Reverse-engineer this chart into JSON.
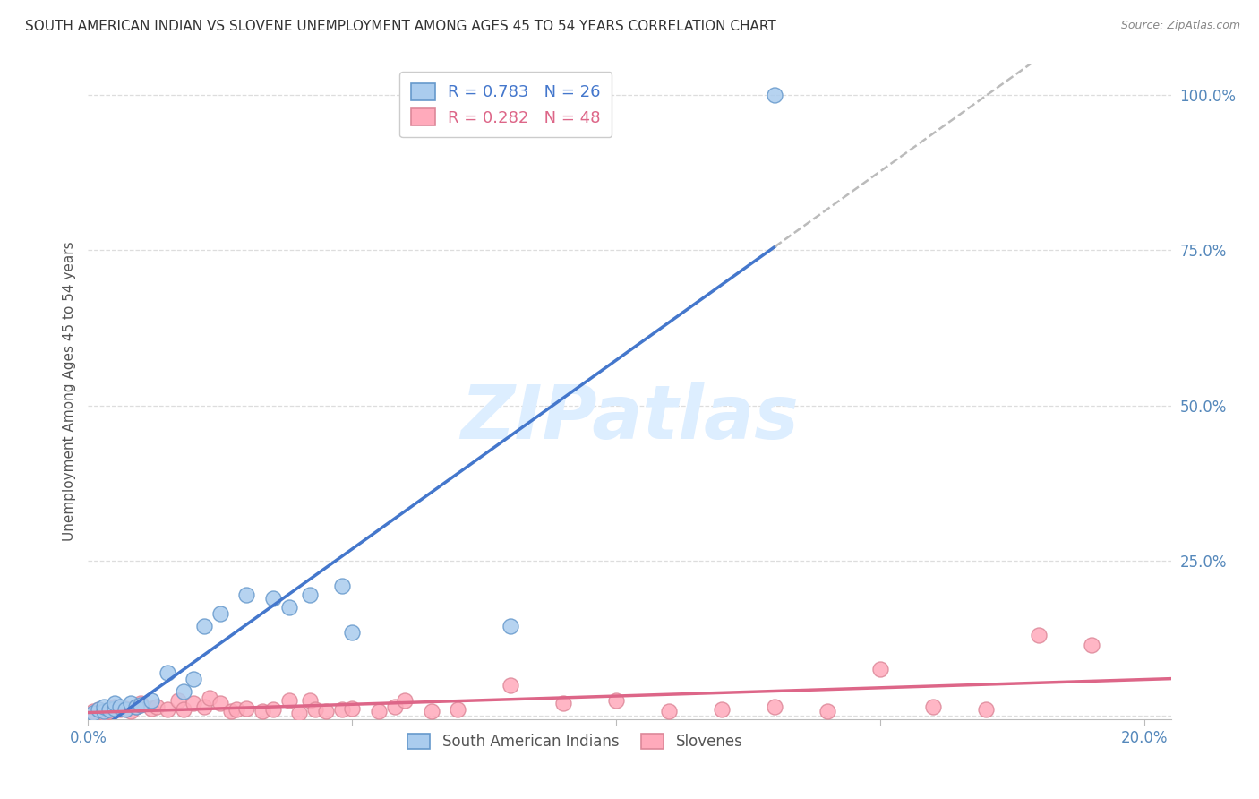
{
  "title": "SOUTH AMERICAN INDIAN VS SLOVENE UNEMPLOYMENT AMONG AGES 45 TO 54 YEARS CORRELATION CHART",
  "source": "Source: ZipAtlas.com",
  "ylabel": "Unemployment Among Ages 45 to 54 years",
  "background_color": "#ffffff",
  "grid_color": "#dddddd",
  "blue_line_color": "#4477cc",
  "blue_scatter_face": "#aaccee",
  "blue_scatter_edge": "#6699cc",
  "pink_line_color": "#dd6688",
  "pink_scatter_face": "#ffaabb",
  "pink_scatter_edge": "#dd8899",
  "dashed_color": "#bbbbbb",
  "R_blue": 0.783,
  "N_blue": 26,
  "R_pink": 0.282,
  "N_pink": 48,
  "watermark": "ZIPatlas",
  "watermark_color": "#ddeeff",
  "legend_blue_label": "South American Indians",
  "legend_pink_label": "Slovenes",
  "blue_x": [
    0.001,
    0.002,
    0.003,
    0.003,
    0.004,
    0.005,
    0.005,
    0.006,
    0.007,
    0.008,
    0.009,
    0.01,
    0.012,
    0.015,
    0.018,
    0.02,
    0.022,
    0.025,
    0.03,
    0.035,
    0.038,
    0.042,
    0.048,
    0.05,
    0.08,
    0.13
  ],
  "blue_y": [
    0.005,
    0.01,
    0.008,
    0.015,
    0.01,
    0.012,
    0.02,
    0.015,
    0.01,
    0.02,
    0.015,
    0.018,
    0.025,
    0.07,
    0.04,
    0.06,
    0.145,
    0.165,
    0.195,
    0.19,
    0.175,
    0.195,
    0.21,
    0.135,
    0.145,
    1.0
  ],
  "pink_x": [
    0.001,
    0.002,
    0.003,
    0.004,
    0.005,
    0.006,
    0.007,
    0.008,
    0.009,
    0.01,
    0.012,
    0.013,
    0.015,
    0.017,
    0.018,
    0.02,
    0.022,
    0.023,
    0.025,
    0.027,
    0.028,
    0.03,
    0.033,
    0.035,
    0.038,
    0.04,
    0.042,
    0.043,
    0.045,
    0.048,
    0.05,
    0.055,
    0.058,
    0.06,
    0.065,
    0.07,
    0.08,
    0.09,
    0.1,
    0.11,
    0.12,
    0.13,
    0.14,
    0.15,
    0.16,
    0.17,
    0.18,
    0.19
  ],
  "pink_y": [
    0.008,
    0.01,
    0.005,
    0.008,
    0.015,
    0.01,
    0.012,
    0.008,
    0.015,
    0.02,
    0.012,
    0.015,
    0.01,
    0.025,
    0.01,
    0.02,
    0.015,
    0.03,
    0.02,
    0.008,
    0.01,
    0.012,
    0.008,
    0.01,
    0.025,
    0.005,
    0.025,
    0.01,
    0.008,
    0.01,
    0.012,
    0.008,
    0.015,
    0.025,
    0.008,
    0.01,
    0.05,
    0.02,
    0.025,
    0.008,
    0.01,
    0.015,
    0.008,
    0.075,
    0.015,
    0.01,
    0.13,
    0.115
  ],
  "xlim": [
    0.0,
    0.205
  ],
  "ylim": [
    -0.005,
    1.05
  ],
  "ytick_positions": [
    0.0,
    0.25,
    0.5,
    0.75,
    1.0
  ],
  "xtick_positions": [
    0.0,
    0.05,
    0.1,
    0.15,
    0.2
  ]
}
